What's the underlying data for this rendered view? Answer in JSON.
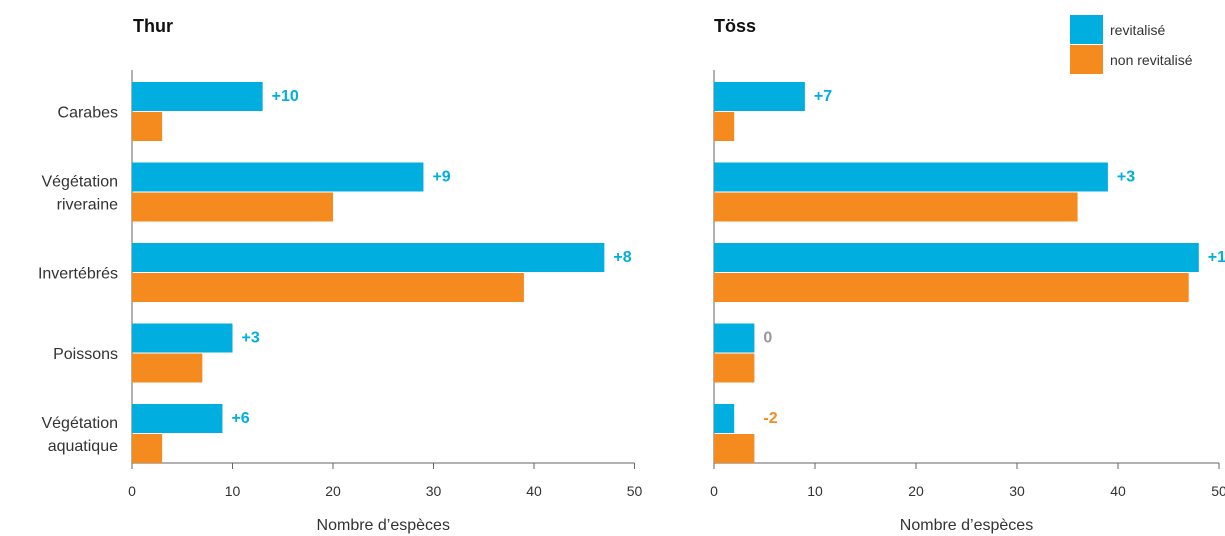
{
  "colors": {
    "revitalise": "#00AEDF",
    "non_revitalise": "#F58A1F",
    "zero_label": "#999999",
    "axis": "#666666"
  },
  "legend": {
    "placement": "top-right",
    "items": [
      "revitalisé",
      "non revitalisé"
    ]
  },
  "chart_data": [
    {
      "type": "bar",
      "orientation": "horizontal",
      "title": "Thur",
      "xlabel": "Nombre d’espèces",
      "xlim": [
        0,
        50
      ],
      "xticks": [
        0,
        10,
        20,
        30,
        40,
        50
      ],
      "categories": [
        [
          "Carabes"
        ],
        [
          "Végétation",
          "riveraine"
        ],
        [
          "Invertébrés"
        ],
        [
          "Poissons"
        ],
        [
          "Végétation",
          "aquatique"
        ]
      ],
      "series": [
        {
          "name": "revitalisé",
          "values": [
            13,
            29,
            47,
            10,
            9
          ]
        },
        {
          "name": "non revitalisé",
          "values": [
            3,
            20,
            39,
            7,
            3
          ]
        }
      ],
      "labels": [
        "+10",
        "+9",
        "+8",
        "+3",
        "+6"
      ]
    },
    {
      "type": "bar",
      "orientation": "horizontal",
      "title": "Töss",
      "xlabel": "Nombre d’espèces",
      "xlim": [
        0,
        50
      ],
      "xticks": [
        0,
        10,
        20,
        30,
        40,
        50
      ],
      "categories": [
        [
          "Carabes"
        ],
        [
          "Végétation",
          "riveraine"
        ],
        [
          "Invertébrés"
        ],
        [
          "Poissons"
        ],
        [
          "Végétation",
          "aquatique"
        ]
      ],
      "series": [
        {
          "name": "revitalisé",
          "values": [
            9,
            39,
            48,
            4,
            2
          ]
        },
        {
          "name": "non revitalisé",
          "values": [
            2,
            36,
            47,
            4,
            4
          ]
        }
      ],
      "labels": [
        "+7",
        "+3",
        "+1",
        "0",
        "-2"
      ]
    }
  ]
}
